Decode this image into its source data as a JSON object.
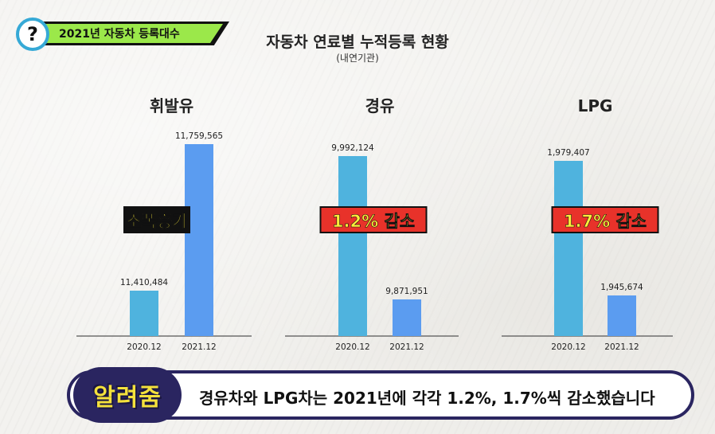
{
  "header": {
    "badge_symbol": "?",
    "tag_label": "2021년 자동차 등록대수",
    "title": "자동차 연료별 누적등록 현황",
    "subtitle": "(내연기관)"
  },
  "colors": {
    "bar_2020": "#4fb3de",
    "bar_2021": "#5b9cf0",
    "tag_green": "#9be84a",
    "badge_ring": "#36a9d6",
    "callout_yellow_text": "#ffef3a",
    "callout_red_bg": "#e8322a",
    "banner_navy": "#2a2560"
  },
  "chart_data": [
    {
      "type": "bar",
      "title": "휘발유",
      "categories": [
        "2020.12",
        "2021.12"
      ],
      "values": [
        11410484,
        11759565
      ],
      "value_labels": [
        "11,410,484",
        "11,759,565"
      ],
      "callout": "소폭증가",
      "callout_style": "black"
    },
    {
      "type": "bar",
      "title": "경유",
      "categories": [
        "2020.12",
        "2021.12"
      ],
      "values": [
        9992124,
        9871951
      ],
      "value_labels": [
        "9,992,124",
        "9,871,951"
      ],
      "callout": "1.2% 감소",
      "callout_style": "red"
    },
    {
      "type": "bar",
      "title": "LPG",
      "categories": [
        "2020.12",
        "2021.12"
      ],
      "values": [
        1979407,
        1945674
      ],
      "value_labels": [
        "1,979,407",
        "1,945,674"
      ],
      "callout": "1.7% 감소",
      "callout_style": "red"
    }
  ],
  "banner": {
    "label": "알려줌",
    "text": "경유차와 LPG차는 2021년에  각각 1.2%, 1.7%씩 감소했습니다"
  }
}
